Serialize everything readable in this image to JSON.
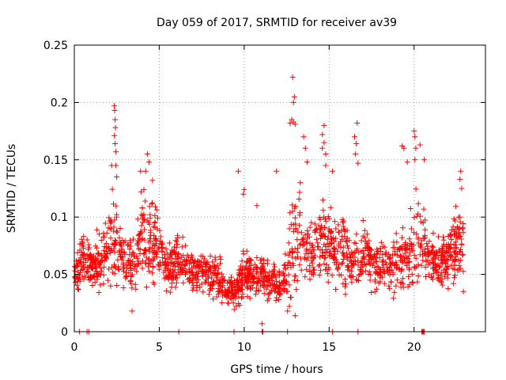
{
  "chart_data": {
    "type": "scatter",
    "title": "Day 059 of 2017, SRMTID for receiver av39",
    "xlabel": "GPS time / hours",
    "ylabel": "SRMTID / TECUs",
    "xlim": [
      0,
      24.2
    ],
    "ylim": [
      0,
      0.25
    ],
    "grid": true,
    "marker": "+",
    "color": "#ff0000",
    "xticks": [
      0,
      5,
      10,
      15,
      20
    ],
    "xtick_labels": [
      "0",
      "5",
      "10",
      "15",
      "20"
    ],
    "yticks": [
      0,
      0.05,
      0.1,
      0.15,
      0.2,
      0.25
    ],
    "ytick_labels": [
      "0",
      "0.05",
      "0.1",
      "0.15",
      "0.2",
      "0.25"
    ],
    "series": [
      {
        "name": "SRMTID",
        "profile": {
          "x": [
            0.0,
            0.3,
            0.7,
            1.0,
            1.5,
            1.8,
            2.1,
            2.4,
            2.6,
            3.0,
            3.5,
            4.0,
            4.5,
            5.0,
            5.5,
            6.0,
            6.5,
            7.0,
            7.5,
            8.0,
            8.5,
            9.0,
            9.5,
            10.0,
            10.5,
            11.0,
            11.5,
            12.0,
            12.5,
            12.8,
            13.0,
            13.5,
            14.0,
            14.5,
            15.0,
            15.5,
            16.0,
            16.5,
            17.0,
            17.5,
            18.0,
            18.5,
            19.0,
            19.5,
            20.0,
            20.2,
            20.5,
            21.0,
            21.5,
            22.0,
            22.5,
            22.9
          ],
          "center": [
            0.045,
            0.06,
            0.065,
            0.055,
            0.06,
            0.07,
            0.08,
            0.09,
            0.07,
            0.062,
            0.06,
            0.085,
            0.08,
            0.068,
            0.055,
            0.06,
            0.058,
            0.052,
            0.055,
            0.05,
            0.048,
            0.038,
            0.035,
            0.05,
            0.048,
            0.05,
            0.042,
            0.04,
            0.05,
            0.07,
            0.08,
            0.075,
            0.07,
            0.078,
            0.075,
            0.07,
            0.068,
            0.06,
            0.065,
            0.062,
            0.058,
            0.055,
            0.06,
            0.062,
            0.075,
            0.09,
            0.08,
            0.065,
            0.06,
            0.065,
            0.075,
            0.08
          ],
          "spread": [
            0.015,
            0.025,
            0.025,
            0.025,
            0.03,
            0.035,
            0.045,
            0.06,
            0.03,
            0.025,
            0.03,
            0.04,
            0.045,
            0.035,
            0.025,
            0.025,
            0.025,
            0.02,
            0.02,
            0.022,
            0.02,
            0.015,
            0.015,
            0.025,
            0.02,
            0.02,
            0.02,
            0.02,
            0.025,
            0.06,
            0.05,
            0.04,
            0.035,
            0.045,
            0.04,
            0.035,
            0.035,
            0.025,
            0.03,
            0.028,
            0.025,
            0.025,
            0.035,
            0.03,
            0.045,
            0.055,
            0.04,
            0.025,
            0.025,
            0.03,
            0.035,
            0.03
          ]
        },
        "highlights": [
          [
            2.35,
            0.197
          ],
          [
            2.38,
            0.193
          ],
          [
            2.4,
            0.185
          ],
          [
            2.42,
            0.178
          ],
          [
            2.36,
            0.171
          ],
          [
            2.4,
            0.164
          ],
          [
            2.45,
            0.157
          ],
          [
            2.45,
            0.145
          ],
          [
            2.5,
            0.135
          ],
          [
            2.2,
            0.145
          ],
          [
            4.3,
            0.155
          ],
          [
            4.4,
            0.148
          ],
          [
            4.2,
            0.14
          ],
          [
            3.9,
            0.14
          ],
          [
            4.6,
            0.132
          ],
          [
            12.85,
            0.222
          ],
          [
            12.95,
            0.205
          ],
          [
            12.9,
            0.2
          ],
          [
            12.8,
            0.185
          ],
          [
            12.9,
            0.183
          ],
          [
            13.0,
            0.181
          ],
          [
            12.7,
            0.182
          ],
          [
            13.5,
            0.17
          ],
          [
            13.6,
            0.16
          ],
          [
            13.7,
            0.148
          ],
          [
            14.7,
            0.18
          ],
          [
            14.6,
            0.172
          ],
          [
            14.7,
            0.165
          ],
          [
            14.6,
            0.16
          ],
          [
            14.8,
            0.155
          ],
          [
            14.8,
            0.145
          ],
          [
            15.2,
            0.14
          ],
          [
            16.65,
            0.182
          ],
          [
            16.5,
            0.17
          ],
          [
            16.6,
            0.164
          ],
          [
            16.55,
            0.155
          ],
          [
            16.7,
            0.147
          ],
          [
            19.3,
            0.162
          ],
          [
            19.4,
            0.16
          ],
          [
            19.6,
            0.148
          ],
          [
            20.0,
            0.175
          ],
          [
            20.05,
            0.17
          ],
          [
            20.1,
            0.16
          ],
          [
            20.05,
            0.15
          ],
          [
            20.35,
            0.163
          ],
          [
            20.6,
            0.15
          ],
          [
            22.75,
            0.14
          ],
          [
            22.7,
            0.133
          ],
          [
            22.8,
            0.125
          ],
          [
            11.9,
            0.14
          ],
          [
            10.0,
            0.124
          ],
          [
            9.95,
            0.12
          ],
          [
            9.65,
            0.14
          ],
          [
            13.3,
            0.13
          ],
          [
            10.75,
            0.11
          ],
          [
            11.05,
            0.007
          ],
          [
            12.55,
            0.018
          ],
          [
            13.0,
            0.014
          ],
          [
            3.4,
            0.018
          ],
          [
            22.9,
            0.035
          ]
        ],
        "zero_points": [
          0.3,
          0.75,
          0.85,
          6.15,
          9.4,
          11.05,
          11.1,
          12.55,
          15.2,
          16.7,
          20.45,
          20.5,
          20.55,
          20.6
        ]
      }
    ]
  }
}
